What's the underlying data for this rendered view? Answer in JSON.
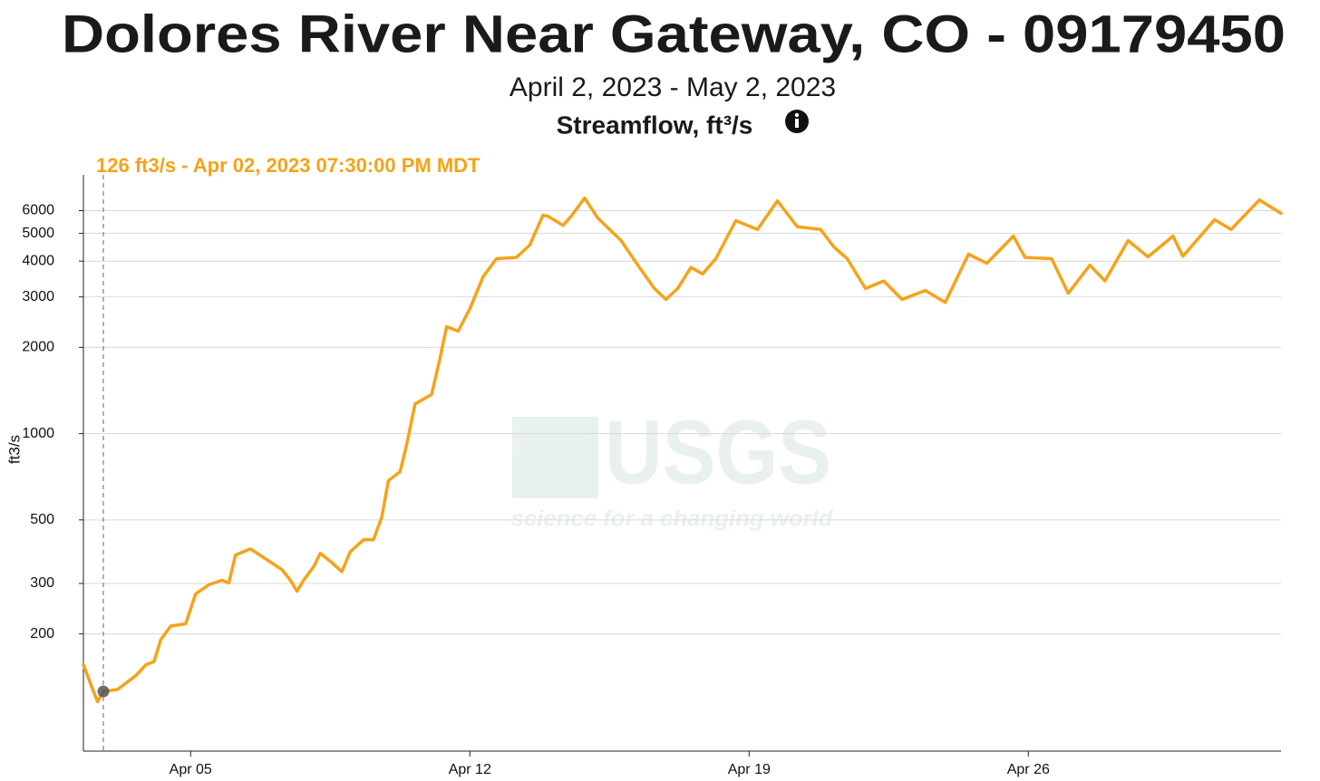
{
  "chart_data": {
    "type": "line",
    "title": "Dolores River Near Gateway, CO - 09179450",
    "subtitle": "April 2, 2023 - May 2, 2023",
    "parameter": "Streamflow, ft³/s",
    "y_label": "ft3/s",
    "watermark": {
      "logo": "USGS",
      "tagline": "science for a changing world"
    },
    "log_y": true,
    "grid": true,
    "xlim": [
      "2023-04-02 07:30",
      "2023-05-02 08:00"
    ],
    "xticks": [
      {
        "value": "2023-04-05 00:00",
        "label": "Apr 05"
      },
      {
        "value": "2023-04-12 00:00",
        "label": "Apr 12"
      },
      {
        "value": "2023-04-19 00:00",
        "label": "Apr 19"
      },
      {
        "value": "2023-04-26 00:00",
        "label": "Apr 26"
      }
    ],
    "ylim": [
      78,
      8000
    ],
    "yticks": [
      200,
      300,
      500,
      1000,
      2000,
      3000,
      4000,
      5000,
      6000
    ],
    "cursor": {
      "x": "2023-04-02 19:30",
      "value": 126,
      "label": "126 ft3/s - Apr 02, 2023 07:30:00 PM MDT"
    },
    "x": [
      "2023-04-02 07:30",
      "2023-04-02 12:00",
      "2023-04-02 16:00",
      "2023-04-02 19:30",
      "2023-04-03 04:00",
      "2023-04-03 15:00",
      "2023-04-03 21:00",
      "2023-04-04 02:00",
      "2023-04-04 06:00",
      "2023-04-04 12:00",
      "2023-04-04 21:00",
      "2023-04-05 03:00",
      "2023-04-05 11:00",
      "2023-04-05 19:00",
      "2023-04-05 23:00",
      "2023-04-06 03:00",
      "2023-04-06 12:00",
      "2023-04-06 20:00",
      "2023-04-07 07:00",
      "2023-04-07 12:00",
      "2023-04-07 16:00",
      "2023-04-07 20:00",
      "2023-04-08 02:00",
      "2023-04-08 06:00",
      "2023-04-08 13:00",
      "2023-04-08 19:00",
      "2023-04-09 00:00",
      "2023-04-09 08:00",
      "2023-04-09 14:00",
      "2023-04-09 19:00",
      "2023-04-09 23:00",
      "2023-04-10 06:00",
      "2023-04-10 10:00",
      "2023-04-10 15:00",
      "2023-04-11 01:00",
      "2023-04-11 06:00",
      "2023-04-11 10:00",
      "2023-04-11 17:00",
      "2023-04-12 00:00",
      "2023-04-12 08:00",
      "2023-04-12 16:00",
      "2023-04-13 04:00",
      "2023-04-13 12:00",
      "2023-04-13 20:00",
      "2023-04-13 23:00",
      "2023-04-14 08:00",
      "2023-04-14 13:00",
      "2023-04-14 21:00",
      "2023-04-15 05:00",
      "2023-04-15 19:00",
      "2023-04-16 06:00",
      "2023-04-16 15:00",
      "2023-04-16 22:00",
      "2023-04-17 05:00",
      "2023-04-17 13:00",
      "2023-04-17 20:00",
      "2023-04-18 04:00",
      "2023-04-18 16:00",
      "2023-04-19 05:00",
      "2023-04-19 17:00",
      "2023-04-20 05:00",
      "2023-04-20 19:00",
      "2023-04-21 03:00",
      "2023-04-21 11:00",
      "2023-04-21 22:00",
      "2023-04-22 09:00",
      "2023-04-22 20:00",
      "2023-04-23 10:00",
      "2023-04-23 22:00",
      "2023-04-24 12:00",
      "2023-04-24 23:00",
      "2023-04-25 15:00",
      "2023-04-25 22:00",
      "2023-04-26 14:00",
      "2023-04-27 00:00",
      "2023-04-27 13:00",
      "2023-04-27 22:00",
      "2023-04-28 12:00",
      "2023-04-29 00:00",
      "2023-04-29 15:00",
      "2023-04-29 21:00",
      "2023-04-30 16:00",
      "2023-05-01 02:00",
      "2023-05-01 19:00",
      "2023-05-02 08:00"
    ],
    "series": [
      {
        "name": "Streamflow",
        "color": "#f5a31a",
        "values": [
          156,
          133,
          116,
          126,
          128,
          143,
          156,
          160,
          191,
          213,
          217,
          276,
          297,
          308,
          301,
          377,
          396,
          369,
          335,
          308,
          282,
          308,
          343,
          382,
          355,
          330,
          387,
          426,
          426,
          511,
          685,
          737,
          916,
          1270,
          1370,
          1830,
          2360,
          2280,
          2730,
          3530,
          4080,
          4120,
          4550,
          5780,
          5740,
          5330,
          5740,
          6640,
          5650,
          4720,
          3800,
          3210,
          2940,
          3210,
          3800,
          3610,
          4080,
          5540,
          5160,
          6490,
          5270,
          5160,
          4480,
          4080,
          3210,
          3410,
          2940,
          3160,
          2870,
          4230,
          3930,
          4890,
          4120,
          4080,
          3090,
          3870,
          3410,
          4720,
          4140,
          4890,
          4160,
          5580,
          5160,
          6540,
          5870
        ]
      }
    ]
  }
}
